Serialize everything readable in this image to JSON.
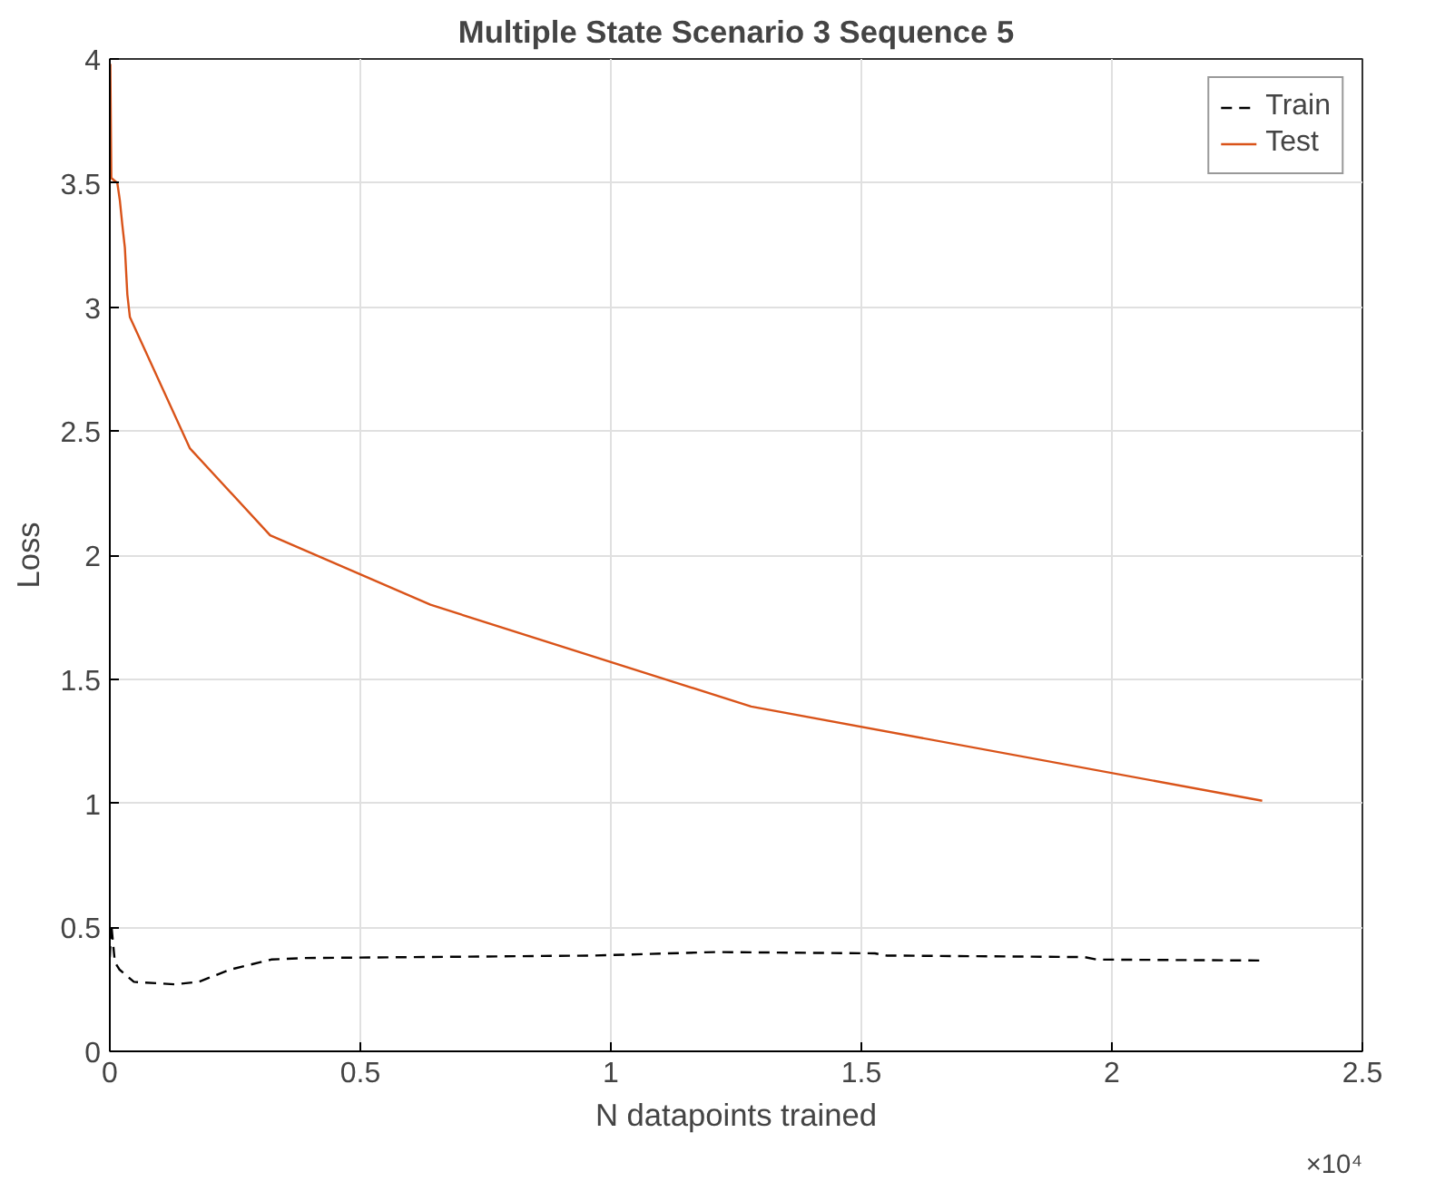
{
  "chart_data": {
    "type": "line",
    "title": "Multiple State Scenario 3 Sequence 5",
    "xlabel": "N datapoints trained",
    "ylabel": "Loss",
    "xlim": [
      0,
      2.5
    ],
    "ylim": [
      0,
      4
    ],
    "xticks": [
      0,
      0.5,
      1,
      1.5,
      2,
      2.5
    ],
    "yticks": [
      0,
      0.5,
      1,
      1.5,
      2,
      2.5,
      3,
      3.5,
      4
    ],
    "annotations": [
      "×10⁴"
    ],
    "grid": true,
    "legend": "top right",
    "series": [
      {
        "name": "Train",
        "color": "#000000",
        "line_style": "dashed",
        "x": [
          0,
          0.003,
          0.01,
          0.019,
          0.048,
          0.129,
          0.177,
          0.241,
          0.322,
          0.386,
          0.965,
          1.206,
          1.527,
          1.55,
          1.945,
          1.97,
          2.3
        ],
        "values": [
          0.38,
          0.51,
          0.36,
          0.33,
          0.28,
          0.27,
          0.28,
          0.33,
          0.37,
          0.376,
          0.386,
          0.4,
          0.395,
          0.386,
          0.38,
          0.37,
          0.366
        ]
      },
      {
        "name": "Test",
        "color": "#d95319",
        "line_style": "solid",
        "x": [
          0.001,
          0.003,
          0.015,
          0.02,
          0.025,
          0.03,
          0.035,
          0.04,
          0.16,
          0.32,
          0.64,
          1.28,
          2.3
        ],
        "values": [
          3.98,
          3.52,
          3.5,
          3.43,
          3.33,
          3.24,
          3.05,
          2.96,
          2.43,
          2.08,
          1.8,
          1.39,
          1.01
        ]
      }
    ]
  }
}
